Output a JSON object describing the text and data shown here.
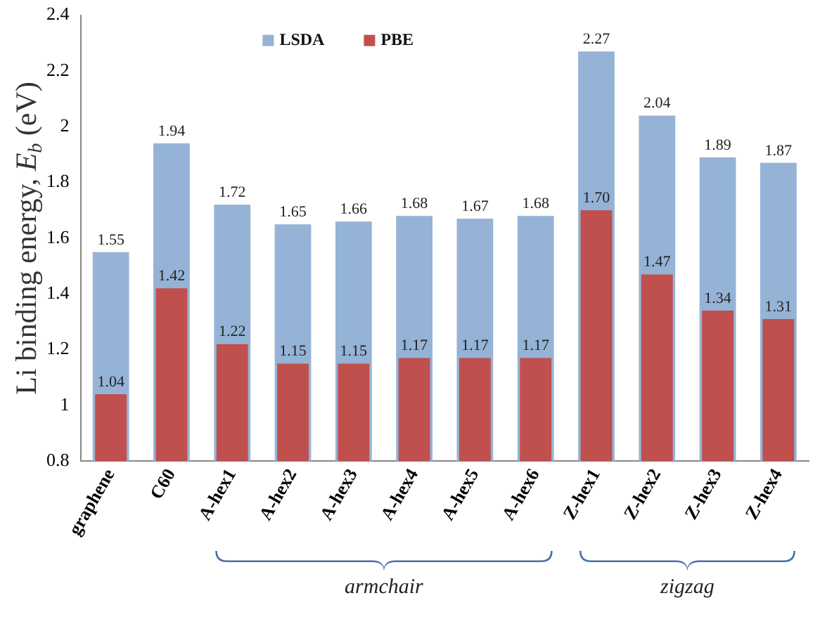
{
  "chart_data": {
    "type": "bar",
    "ylabel": "Li binding energy, E$_{b}$ (eV)",
    "categories": [
      "graphene",
      "C60",
      "A-hex1",
      "A-hex2",
      "A-hex3",
      "A-hex4",
      "A-hex5",
      "A-hex6",
      "Z-hex1",
      "Z-hex2",
      "Z-hex3",
      "Z-hex4"
    ],
    "series": [
      {
        "name": "LSDA",
        "color": "#95b3d7",
        "values": [
          1.55,
          1.94,
          1.72,
          1.65,
          1.66,
          1.68,
          1.67,
          1.68,
          2.27,
          2.04,
          1.89,
          1.87
        ],
        "value_labels": [
          "1.55",
          "1.94",
          "1.72",
          "1.65",
          "1.66",
          "1.68",
          "1.67",
          "1.68",
          "2.27",
          "2.04",
          "1.89",
          "1.87"
        ]
      },
      {
        "name": "PBE",
        "color": "#c0504d",
        "values": [
          1.04,
          1.42,
          1.22,
          1.15,
          1.15,
          1.17,
          1.17,
          1.17,
          1.7,
          1.47,
          1.34,
          1.31
        ],
        "value_labels": [
          "1.04",
          "1.42",
          "1.22",
          "1.15",
          "1.15",
          "1.17",
          "1.17",
          "1.17",
          "1.70",
          "1.47",
          "1.34",
          "1.31"
        ]
      }
    ],
    "ylim": [
      0.8,
      2.4
    ],
    "yticks": [
      0.8,
      1,
      1.2,
      1.4,
      1.6,
      1.8,
      2,
      2.2,
      2.4
    ],
    "grid": false,
    "legend": "top",
    "annotations": [
      "armchair",
      "zigzag"
    ]
  }
}
